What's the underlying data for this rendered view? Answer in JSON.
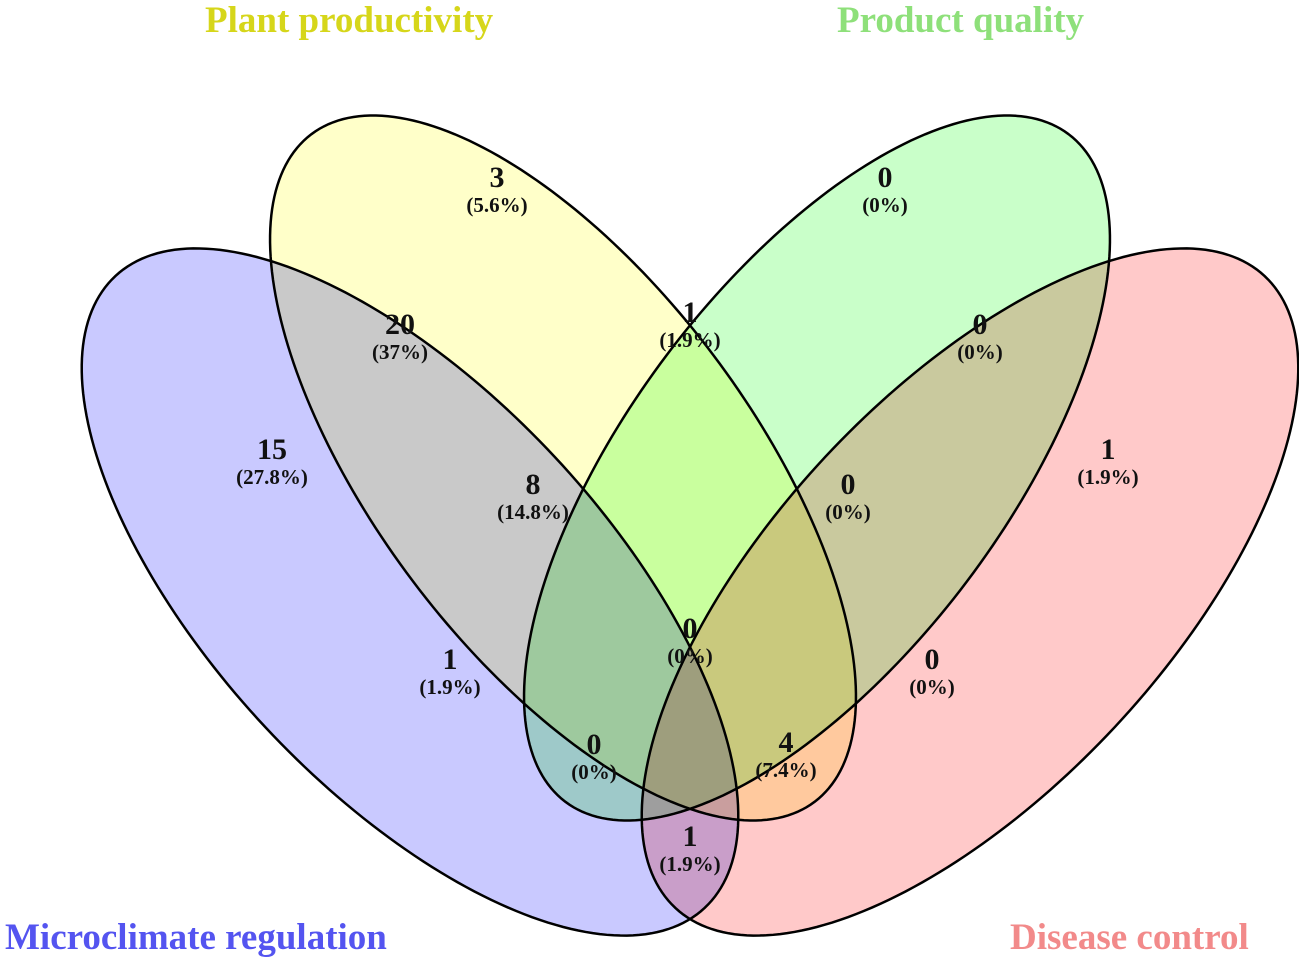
{
  "sets": [
    {
      "name": "Microclimate regulation",
      "color": "#5454f0",
      "fill": "#a8a8ff"
    },
    {
      "name": "Plant productivity",
      "color": "#d6d61a",
      "fill": "#ffffa8"
    },
    {
      "name": "Product quality",
      "color": "#8ee07a",
      "fill": "#a8ffa8"
    },
    {
      "name": "Disease control",
      "color": "#f28a8a",
      "fill": "#ffa8a8"
    }
  ],
  "regions": [
    {
      "sets": [
        "Plant productivity"
      ],
      "count": "3",
      "percent": "(5.6%)"
    },
    {
      "sets": [
        "Product quality"
      ],
      "count": "0",
      "percent": "(0%)"
    },
    {
      "sets": [
        "Microclimate regulation",
        "Plant productivity"
      ],
      "count": "20",
      "percent": "(37%)"
    },
    {
      "sets": [
        "Plant productivity",
        "Product quality"
      ],
      "count": "1",
      "percent": "(1.9%)"
    },
    {
      "sets": [
        "Product quality",
        "Disease control"
      ],
      "count": "0",
      "percent": "(0%)"
    },
    {
      "sets": [
        "Microclimate regulation"
      ],
      "count": "15",
      "percent": "(27.8%)"
    },
    {
      "sets": [
        "Microclimate regulation",
        "Plant productivity",
        "Product quality"
      ],
      "count": "8",
      "percent": "(14.8%)"
    },
    {
      "sets": [
        "Plant productivity",
        "Product quality",
        "Disease control"
      ],
      "count": "0",
      "percent": "(0%)"
    },
    {
      "sets": [
        "Disease control"
      ],
      "count": "1",
      "percent": "(1.9%)"
    },
    {
      "sets": [
        "Microclimate regulation",
        "Product quality"
      ],
      "count": "1",
      "percent": "(1.9%)"
    },
    {
      "sets": [
        "Microclimate regulation",
        "Plant productivity",
        "Product quality",
        "Disease control"
      ],
      "count": "0",
      "percent": "(0%)"
    },
    {
      "sets": [
        "Plant productivity",
        "Disease control"
      ],
      "count": "0",
      "percent": "(0%)"
    },
    {
      "sets": [
        "Microclimate regulation",
        "Product quality",
        "Disease control"
      ],
      "count": "0",
      "percent": "(0%)"
    },
    {
      "sets": [
        "Microclimate regulation",
        "Plant productivity",
        "Disease control"
      ],
      "count": "4",
      "percent": "(7.4%)"
    },
    {
      "sets": [
        "Microclimate regulation",
        "Disease control"
      ],
      "count": "1",
      "percent": "(1.9%)"
    }
  ]
}
